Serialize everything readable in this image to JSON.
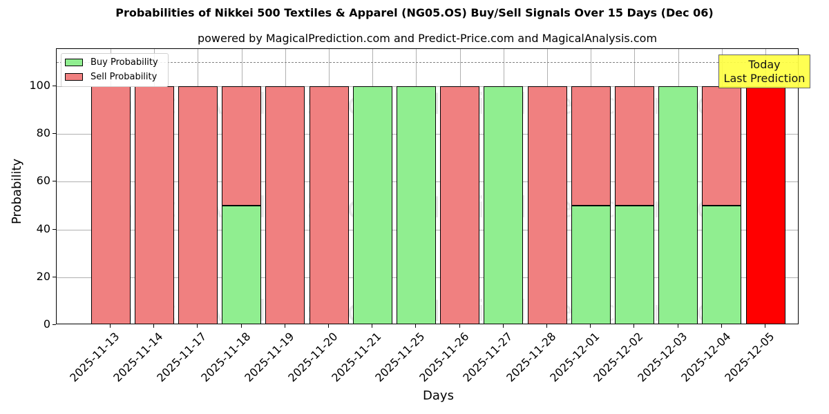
{
  "chart_data": {
    "type": "bar",
    "stacked": true,
    "title": "Probabilities of Nikkei 500 Textiles & Apparel (NG05.OS) Buy/Sell Signals Over 15 Days (Dec 06)",
    "subtitle": "powered by MagicalPrediction.com and Predict-Price.com and MagicalAnalysis.com",
    "xlabel": "Days",
    "ylabel": "Probability",
    "ylim": [
      0,
      115.6
    ],
    "yticks": [
      0,
      20,
      40,
      60,
      80,
      100
    ],
    "grid": true,
    "legend_position": "upper left",
    "reference_line": {
      "y": 110,
      "style": "dashed",
      "color": "#808080"
    },
    "categories": [
      "2025-11-13",
      "2025-11-14",
      "2025-11-17",
      "2025-11-18",
      "2025-11-19",
      "2025-11-20",
      "2025-11-21",
      "2025-11-25",
      "2025-11-26",
      "2025-11-27",
      "2025-11-28",
      "2025-12-01",
      "2025-12-02",
      "2025-12-03",
      "2025-12-04",
      "2025-12-05"
    ],
    "series": [
      {
        "name": "Buy Probability",
        "color": "#90ee90",
        "values": [
          0,
          0,
          0,
          50,
          0,
          0,
          100,
          100,
          0,
          100,
          0,
          50,
          50,
          100,
          50,
          0
        ]
      },
      {
        "name": "Sell Probability",
        "color": "#f08080",
        "values": [
          100,
          100,
          100,
          50,
          100,
          100,
          0,
          0,
          100,
          0,
          100,
          50,
          50,
          0,
          50,
          100
        ]
      }
    ],
    "highlight": {
      "category": "2025-12-05",
      "color": "#ff0000",
      "label": "Today\nLast Prediction"
    },
    "annotation": {
      "line1": "Today",
      "line2": "Last Prediction",
      "background": "#ffff44"
    }
  },
  "watermarks": [
    "MagicalAnalysis.com",
    "MagicalPrediction.com"
  ],
  "legend": [
    {
      "label": "Buy Probability",
      "color": "#90ee90"
    },
    {
      "label": "Sell Probability",
      "color": "#f08080"
    }
  ]
}
